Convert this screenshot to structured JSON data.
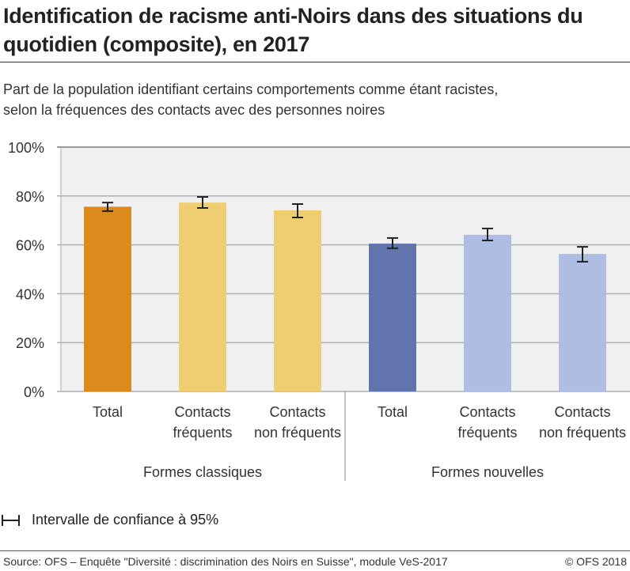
{
  "title": "Identification de racisme anti-Noirs dans des situations du quotidien (composite), en 2017",
  "subtitle_line1": "Part de la population identifiant certains comportements comme étant racistes,",
  "subtitle_line2": "selon la fréquences des contacts avec des personnes noires",
  "legend_label": "Intervalle de confiance à 95%",
  "source": "Source: OFS – Enquête \"Diversité : discrimination des Noirs en Suisse\", module VeS-2017",
  "copyright": "© OFS 2018",
  "chart_data": {
    "type": "bar",
    "ylim": [
      0,
      100
    ],
    "yticks": [
      "0%",
      "20%",
      "40%",
      "60%",
      "80%",
      "100%"
    ],
    "groups": [
      "Formes classiques",
      "Formes nouvelles"
    ],
    "bars": [
      {
        "group": 0,
        "label": [
          "Total"
        ],
        "value": 75.6,
        "ci": [
          73.8,
          77.3
        ],
        "color": "#db8a1c"
      },
      {
        "group": 0,
        "label": [
          "Contacts",
          "fréquents"
        ],
        "value": 77.3,
        "ci": [
          75.1,
          79.6
        ],
        "color": "#eece71"
      },
      {
        "group": 0,
        "label": [
          "Contacts",
          "non fréquents"
        ],
        "value": 74.1,
        "ci": [
          71.2,
          76.7
        ],
        "color": "#eece71"
      },
      {
        "group": 1,
        "label": [
          "Total"
        ],
        "value": 60.5,
        "ci": [
          58.6,
          62.8
        ],
        "color": "#6274ad"
      },
      {
        "group": 1,
        "label": [
          "Contacts",
          "fréquents"
        ],
        "value": 64.1,
        "ci": [
          61.8,
          66.7
        ],
        "color": "#adbde4"
      },
      {
        "group": 1,
        "label": [
          "Contacts",
          "non fréquents"
        ],
        "value": 56.3,
        "ci": [
          53.1,
          59.2
        ],
        "color": "#adbde4"
      }
    ]
  }
}
